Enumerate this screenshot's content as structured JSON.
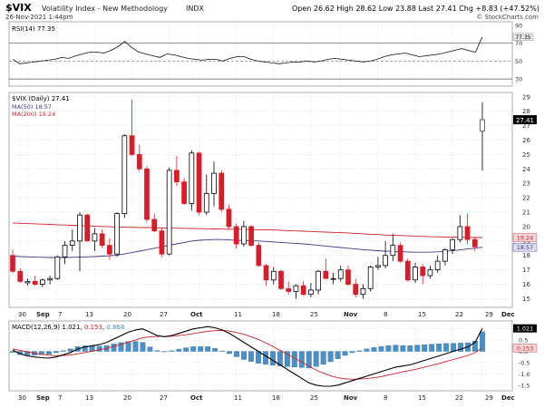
{
  "header": {
    "symbol": "$VIX",
    "name": "Volatility Index - New Methodology",
    "exchange": "INDX",
    "date": "26-Nov-2021 1:44pm",
    "open_label": "Open",
    "open": "26.62",
    "high_label": "High",
    "high": "28.62",
    "low_label": "Low",
    "low": "23.88",
    "last_label": "Last",
    "last": "27.41",
    "chg_label": "Chg",
    "chg": "+8.83 (+47.52%)",
    "watermark": "© StockCharts.com"
  },
  "colors": {
    "up": "#000000",
    "down": "#d81c2a",
    "ma50": "#3a3a8c",
    "ma200": "#cc2222",
    "macd_line": "#000000",
    "signal_line": "#cc2222",
    "histogram": "#4a90c8",
    "grid": "#c8c8c8",
    "last_badge": "#000000"
  },
  "chart_data": [
    {
      "type": "line",
      "panel": "RSI",
      "legend": "RSI(14) 77.35",
      "ylim": [
        22,
        94
      ],
      "yticks": [
        30,
        50,
        70,
        90
      ],
      "ref_lines": [
        30,
        50,
        70
      ],
      "last_value": "77.35",
      "grid": true,
      "values": [
        52,
        47,
        48,
        49,
        50,
        51,
        52,
        54,
        53,
        56,
        58,
        60,
        60,
        59,
        62,
        66,
        72,
        65,
        60,
        58,
        56,
        54,
        58,
        57,
        55,
        53,
        52,
        51,
        52,
        52,
        50,
        53,
        55,
        55,
        52,
        50,
        49,
        48,
        47,
        48,
        49,
        49,
        50,
        49,
        50,
        52,
        53,
        52,
        51,
        50,
        49,
        50,
        52,
        55,
        57,
        58,
        59,
        57,
        55,
        56,
        57,
        58,
        60,
        62,
        64,
        62,
        60,
        77
      ]
    },
    {
      "type": "candlestick",
      "panel": "Price",
      "legend": "$VIX (Daily) 27.41",
      "ma_legends": [
        "MA(50) 18.57",
        "MA(200) 19.24"
      ],
      "ylim": [
        14.4,
        29.3
      ],
      "yticks": [
        15,
        16,
        17,
        18,
        19,
        20,
        21,
        22,
        23,
        24,
        25,
        26,
        27,
        28,
        29
      ],
      "last_value": "27.41",
      "ma50_badge": "18.57",
      "ma200_badge": "19.24",
      "grid": true,
      "x_labels": [
        "30",
        "Sep",
        "7",
        "13",
        "20",
        "27",
        "Oct",
        "11",
        "18",
        "25",
        "Nov",
        "8",
        "15",
        "22",
        "29",
        "Dec"
      ],
      "candles": [
        [
          18.0,
          18.4,
          16.8,
          16.9
        ],
        [
          16.9,
          17.1,
          16.1,
          16.2
        ],
        [
          16.1,
          16.4,
          15.9,
          16.2
        ],
        [
          16.2,
          16.6,
          15.9,
          16.0
        ],
        [
          16.0,
          16.4,
          15.8,
          16.3
        ],
        [
          16.3,
          16.6,
          16.0,
          16.4
        ],
        [
          16.4,
          18.0,
          16.3,
          17.9
        ],
        [
          17.9,
          19.0,
          17.4,
          18.7
        ],
        [
          18.7,
          19.8,
          18.3,
          19.0
        ],
        [
          19.0,
          21.0,
          16.9,
          20.8
        ],
        [
          20.8,
          20.9,
          19.0,
          19.0
        ],
        [
          19.0,
          19.9,
          18.3,
          19.5
        ],
        [
          19.5,
          19.8,
          18.5,
          18.7
        ],
        [
          18.7,
          19.2,
          17.7,
          18.1
        ],
        [
          18.1,
          21.0,
          17.9,
          20.9
        ],
        [
          20.9,
          26.4,
          20.6,
          26.3
        ],
        [
          26.3,
          28.8,
          24.9,
          25.0
        ],
        [
          25.0,
          25.7,
          23.8,
          24.0
        ],
        [
          24.0,
          24.2,
          20.3,
          20.5
        ],
        [
          20.5,
          20.9,
          19.6,
          19.7
        ],
        [
          19.7,
          19.9,
          17.9,
          18.1
        ],
        [
          18.1,
          24.1,
          18.0,
          23.9
        ],
        [
          23.9,
          24.9,
          22.8,
          23.1
        ],
        [
          23.1,
          23.4,
          21.5,
          21.6
        ],
        [
          21.6,
          25.3,
          21.1,
          25.1
        ],
        [
          25.1,
          25.2,
          20.8,
          21.0
        ],
        [
          21.0,
          23.6,
          20.8,
          22.3
        ],
        [
          22.3,
          24.5,
          21.4,
          23.7
        ],
        [
          23.7,
          23.9,
          21.0,
          21.2
        ],
        [
          21.2,
          21.5,
          19.8,
          20.0
        ],
        [
          20.0,
          20.2,
          18.5,
          18.8
        ],
        [
          18.8,
          20.4,
          18.6,
          20.0
        ],
        [
          20.0,
          20.1,
          18.6,
          18.7
        ],
        [
          18.7,
          18.9,
          17.2,
          17.3
        ],
        [
          17.3,
          17.4,
          15.9,
          16.3
        ],
        [
          16.3,
          17.2,
          16.0,
          16.9
        ],
        [
          16.9,
          17.0,
          15.6,
          15.7
        ],
        [
          15.7,
          16.2,
          15.3,
          15.5
        ],
        [
          15.5,
          16.0,
          15.0,
          15.9
        ],
        [
          15.9,
          16.2,
          15.2,
          15.3
        ],
        [
          15.3,
          16.1,
          15.1,
          15.6
        ],
        [
          15.6,
          17.0,
          15.3,
          16.9
        ],
        [
          16.9,
          17.8,
          16.4,
          16.4
        ],
        [
          16.4,
          16.8,
          16.0,
          16.4
        ],
        [
          16.4,
          17.3,
          16.2,
          17.0
        ],
        [
          17.0,
          17.3,
          15.9,
          16.0
        ],
        [
          16.0,
          16.4,
          15.1,
          15.3
        ],
        [
          15.3,
          16.0,
          15.0,
          15.7
        ],
        [
          15.7,
          17.3,
          15.5,
          17.2
        ],
        [
          17.2,
          17.9,
          17.0,
          17.3
        ],
        [
          17.3,
          19.0,
          17.1,
          18.0
        ],
        [
          18.0,
          19.5,
          17.6,
          18.7
        ],
        [
          18.7,
          18.9,
          17.5,
          17.6
        ],
        [
          17.6,
          17.8,
          16.2,
          16.3
        ],
        [
          16.3,
          17.5,
          16.1,
          17.2
        ],
        [
          17.2,
          17.4,
          16.0,
          16.6
        ],
        [
          16.6,
          17.3,
          16.4,
          17.0
        ],
        [
          17.0,
          18.0,
          16.8,
          17.6
        ],
        [
          17.6,
          18.5,
          17.3,
          18.4
        ],
        [
          18.4,
          19.2,
          18.1,
          19.1
        ],
        [
          19.1,
          20.8,
          18.9,
          20.0
        ],
        [
          20.0,
          20.9,
          18.8,
          19.1
        ],
        [
          19.1,
          19.3,
          18.3,
          18.6
        ],
        [
          26.62,
          28.62,
          23.88,
          27.41
        ]
      ],
      "ma50": [
        17.95,
        17.92,
        17.9,
        17.88,
        17.87,
        17.86,
        17.86,
        17.86,
        17.87,
        17.88,
        17.9,
        17.92,
        17.95,
        17.98,
        18.02,
        18.1,
        18.2,
        18.3,
        18.4,
        18.5,
        18.6,
        18.7,
        18.8,
        18.9,
        19.0,
        19.05,
        19.08,
        19.1,
        19.1,
        19.08,
        19.06,
        19.04,
        19.02,
        19.0,
        18.97,
        18.94,
        18.9,
        18.87,
        18.84,
        18.8,
        18.75,
        18.7,
        18.65,
        18.6,
        18.55,
        18.5,
        18.45,
        18.4,
        18.36,
        18.33,
        18.3,
        18.28,
        18.26,
        18.24,
        18.22,
        18.22,
        18.23,
        18.25,
        18.28,
        18.32,
        18.38,
        18.45,
        18.5,
        18.57
      ],
      "ma200": [
        20.25,
        20.23,
        20.21,
        20.19,
        20.17,
        20.15,
        20.13,
        20.11,
        20.09,
        20.07,
        20.05,
        20.03,
        20.01,
        19.99,
        19.97,
        19.96,
        19.95,
        19.94,
        19.93,
        19.92,
        19.91,
        19.9,
        19.89,
        19.88,
        19.87,
        19.86,
        19.85,
        19.84,
        19.83,
        19.82,
        19.81,
        19.8,
        19.79,
        19.78,
        19.77,
        19.76,
        19.74,
        19.72,
        19.7,
        19.68,
        19.66,
        19.64,
        19.62,
        19.6,
        19.58,
        19.56,
        19.53,
        19.5,
        19.47,
        19.45,
        19.42,
        19.4,
        19.38,
        19.36,
        19.34,
        19.32,
        19.3,
        19.29,
        19.28,
        19.27,
        19.26,
        19.25,
        19.24,
        19.24
      ]
    },
    {
      "type": "line",
      "panel": "MACD",
      "legend": "MACD(12,26,9) 1.021, 0.153, 0.868",
      "legend_prefix": "MACD(12,26,9) 1.021, ",
      "legend_signal": "0.153",
      "legend_sep": ", ",
      "legend_hist": "0.868",
      "ylim": [
        -1.75,
        1.35
      ],
      "yticks": [
        -1.5,
        -1.0,
        -0.5,
        0.0,
        0.5,
        1.0
      ],
      "ytick_labels": [
        "-1.5",
        "-1.0",
        "-0.5",
        "0.0",
        "0.5",
        "1.0"
      ],
      "last_value": "1.021",
      "signal_badge": "0.153",
      "grid": true,
      "macd": [
        0.05,
        -0.1,
        -0.2,
        -0.25,
        -0.28,
        -0.3,
        -0.25,
        -0.15,
        -0.05,
        0.1,
        0.2,
        0.25,
        0.3,
        0.4,
        0.55,
        0.7,
        0.85,
        0.95,
        1.0,
        0.85,
        0.7,
        0.65,
        0.7,
        0.8,
        0.9,
        1.0,
        1.05,
        1.1,
        1.05,
        0.95,
        0.8,
        0.6,
        0.4,
        0.2,
        0.0,
        -0.2,
        -0.4,
        -0.6,
        -0.8,
        -1.0,
        -1.2,
        -1.4,
        -1.5,
        -1.55,
        -1.55,
        -1.5,
        -1.4,
        -1.3,
        -1.2,
        -1.1,
        -1.0,
        -0.9,
        -0.8,
        -0.7,
        -0.65,
        -0.6,
        -0.5,
        -0.4,
        -0.3,
        -0.2,
        -0.1,
        0.0,
        0.1,
        0.2,
        0.4,
        1.02
      ],
      "signal": [
        0.1,
        0.05,
        -0.02,
        -0.08,
        -0.13,
        -0.17,
        -0.19,
        -0.18,
        -0.16,
        -0.11,
        -0.05,
        0.01,
        0.07,
        0.14,
        0.22,
        0.31,
        0.41,
        0.51,
        0.6,
        0.65,
        0.66,
        0.66,
        0.67,
        0.7,
        0.74,
        0.79,
        0.84,
        0.89,
        0.92,
        0.93,
        0.9,
        0.84,
        0.76,
        0.65,
        0.53,
        0.38,
        0.22,
        0.05,
        -0.12,
        -0.3,
        -0.48,
        -0.66,
        -0.83,
        -0.97,
        -1.09,
        -1.17,
        -1.22,
        -1.24,
        -1.23,
        -1.21,
        -1.17,
        -1.12,
        -1.05,
        -0.98,
        -0.91,
        -0.85,
        -0.78,
        -0.7,
        -0.62,
        -0.54,
        -0.45,
        -0.36,
        -0.27,
        -0.18,
        -0.06,
        0.15
      ]
    }
  ]
}
